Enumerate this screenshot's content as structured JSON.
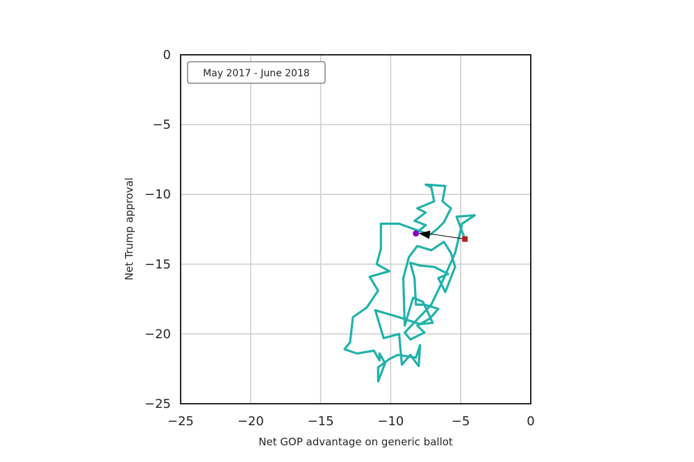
{
  "chart_data": {
    "type": "line",
    "title": "",
    "xlabel": "Net GOP advantage on generic ballot",
    "ylabel": "Net Trump approval",
    "xlim": [
      -25,
      0
    ],
    "ylim": [
      -25,
      0
    ],
    "xticks": [
      -25,
      -20,
      -15,
      -10,
      -5,
      0
    ],
    "yticks": [
      0,
      -5,
      -10,
      -15,
      -20,
      -25
    ],
    "xtick_labels": [
      "−25",
      "−20",
      "−15",
      "−10",
      "−5",
      "0"
    ],
    "ytick_labels": [
      "0",
      "−5",
      "−10",
      "−15",
      "−20",
      "−25"
    ],
    "grid": true,
    "annotation": "May 2017 - June 2018",
    "series": [
      {
        "color": "#20b2aa",
        "x": [
          -8.2,
          -7.5,
          -8.3,
          -7.5,
          -8.1,
          -6.9,
          -7.1,
          -7.5,
          -6.1,
          -6.3,
          -5.7,
          -6.2,
          -6.7,
          -7.2,
          -9.4,
          -10.7,
          -10.7,
          -11.0,
          -10.1,
          -11.5,
          -10.9,
          -11.7,
          -12.7,
          -12.9,
          -13.3,
          -12.4,
          -11.2,
          -10.8,
          -10.8,
          -10.4,
          -10.9,
          -10.9,
          -10.1,
          -9.5,
          -8.2,
          -7.9,
          -8.0,
          -8.6,
          -9.2,
          -9.4,
          -10.5,
          -11.1,
          -9.4,
          -7.9,
          -7.0,
          -7.7,
          -8.4,
          -9.0,
          -9.1,
          -8.7,
          -8.1,
          -7.1,
          -6.2,
          -5.7,
          -5.4,
          -6.1,
          -6.6,
          -5.9,
          -6.9,
          -7.9,
          -8.6,
          -8.3,
          -8.2,
          -7.6,
          -6.6,
          -7.2,
          -8.1,
          -7.6,
          -8.6,
          -9.0,
          -7.1,
          -6.2,
          -5.4,
          -4.9,
          -4.0,
          -5.3,
          -4.7
        ],
        "y": [
          -12.8,
          -12.2,
          -11.9,
          -11.3,
          -11.0,
          -10.5,
          -9.5,
          -9.3,
          -9.4,
          -10.5,
          -11.0,
          -12.0,
          -12.5,
          -12.9,
          -12.1,
          -12.1,
          -13.9,
          -15.0,
          -15.5,
          -15.9,
          -16.9,
          -18.1,
          -18.8,
          -20.6,
          -21.1,
          -21.4,
          -21.2,
          -21.9,
          -21.4,
          -22.1,
          -23.4,
          -22.4,
          -21.8,
          -21.5,
          -21.7,
          -20.8,
          -22.3,
          -21.5,
          -22.2,
          -20.0,
          -20.3,
          -18.3,
          -18.8,
          -19.3,
          -19.2,
          -17.7,
          -17.4,
          -19.4,
          -16.0,
          -14.5,
          -13.7,
          -14.0,
          -13.4,
          -14.2,
          -15.2,
          -17.0,
          -16.0,
          -15.7,
          -15.2,
          -15.1,
          -14.9,
          -16.0,
          -17.9,
          -17.9,
          -18.2,
          -18.9,
          -19.4,
          -19.9,
          -20.4,
          -19.9,
          -17.9,
          -16.0,
          -14.2,
          -12.1,
          -11.5,
          -11.6,
          -13.2
        ]
      }
    ],
    "start_marker": {
      "x": -8.2,
      "y": -12.8,
      "color": "#8a00c8"
    },
    "end_marker": {
      "x": -4.7,
      "y": -13.2,
      "color": "#b22222"
    }
  }
}
